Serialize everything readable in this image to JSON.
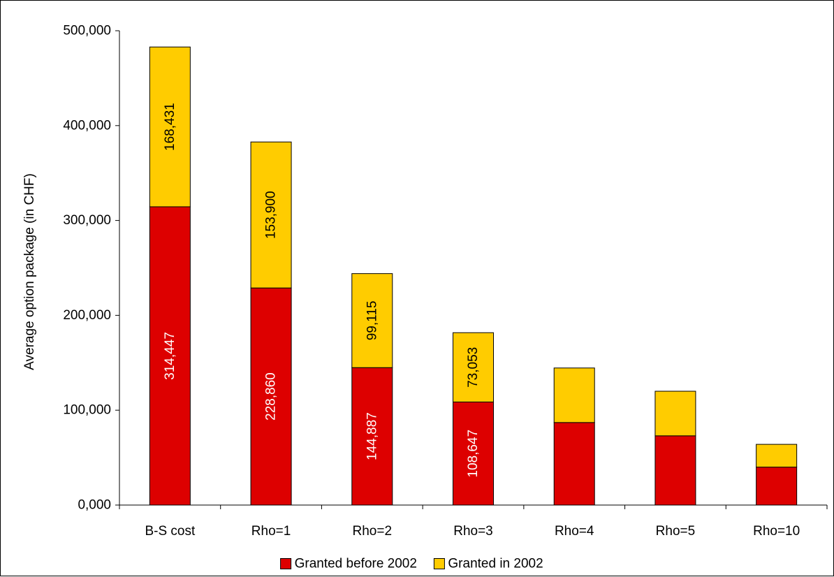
{
  "chart_data": {
    "type": "bar",
    "stacked": true,
    "categories": [
      "B-S cost",
      "Rho=1",
      "Rho=2",
      "Rho=3",
      "Rho=4",
      "Rho=5",
      "Rho=10"
    ],
    "series": [
      {
        "name": "Granted before 2002",
        "color": "#dd0000",
        "label_color": "#ffffff",
        "values": [
          314447,
          228860,
          144887,
          108647,
          87000,
          73000,
          40000
        ],
        "labels": [
          "314,447",
          "228,860",
          "144,887",
          "108,647",
          "",
          "",
          ""
        ]
      },
      {
        "name": "Granted in 2002",
        "color": "#ffcc00",
        "label_color": "#000000",
        "values": [
          168431,
          153900,
          99115,
          73053,
          57500,
          47000,
          24000
        ],
        "labels": [
          "168,431",
          "153,900",
          "99,115",
          "73,053",
          "",
          "",
          ""
        ]
      }
    ],
    "ylabel": "Average option package (in CHF)",
    "ylim": [
      0,
      500000
    ],
    "yticks": [
      0,
      100000,
      200000,
      300000,
      400000,
      500000
    ],
    "ytick_labels": [
      "0,000",
      "100,000",
      "200,000",
      "300,000",
      "400,000",
      "500,000"
    ],
    "legend_position": "bottom",
    "grid": false
  }
}
